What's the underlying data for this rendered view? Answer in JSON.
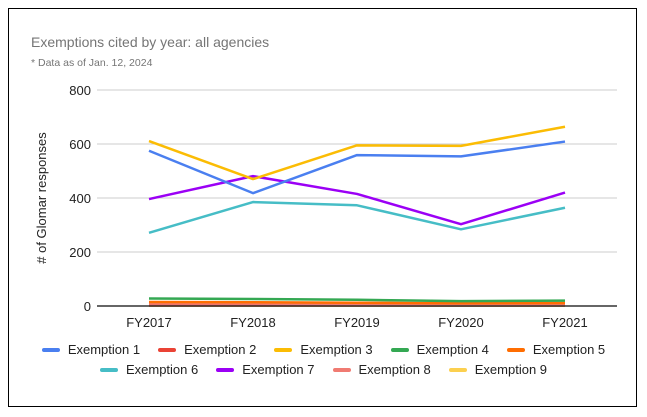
{
  "chart_data": {
    "type": "line",
    "title": "Exemptions cited by year: all agencies",
    "subtitle": "* Data as of Jan. 12, 2024",
    "xlabel": "",
    "ylabel": "# of Glomar responses",
    "ylim": [
      0,
      800
    ],
    "yticks": [
      0,
      200,
      400,
      600,
      800
    ],
    "grid": true,
    "legend_position": "bottom",
    "categories": [
      "FY2017",
      "FY2018",
      "FY2019",
      "FY2020",
      "FY2021"
    ],
    "series": [
      {
        "name": "Exemption 1",
        "color": "#4A7FF0",
        "values": [
          575,
          418,
          559,
          554,
          609
        ]
      },
      {
        "name": "Exemption 2",
        "color": "#EA4335",
        "values": [
          2,
          2,
          2,
          2,
          2
        ]
      },
      {
        "name": "Exemption 3",
        "color": "#FBBC04",
        "values": [
          611,
          470,
          595,
          593,
          664
        ]
      },
      {
        "name": "Exemption 4",
        "color": "#34A853",
        "values": [
          28,
          26,
          23,
          18,
          20
        ]
      },
      {
        "name": "Exemption 5",
        "color": "#FF6D01",
        "values": [
          15,
          14,
          12,
          10,
          11
        ]
      },
      {
        "name": "Exemption 6",
        "color": "#46BDC6",
        "values": [
          271,
          385,
          373,
          284,
          364
        ]
      },
      {
        "name": "Exemption 7",
        "color": "#9B00F5",
        "values": [
          396,
          481,
          415,
          303,
          420
        ]
      },
      {
        "name": "Exemption 8",
        "color": "#F07B72",
        "values": [
          9,
          9,
          7,
          6,
          7
        ]
      },
      {
        "name": "Exemption 9",
        "color": "#FCD04F",
        "values": [
          1,
          1,
          1,
          1,
          1
        ]
      }
    ]
  }
}
